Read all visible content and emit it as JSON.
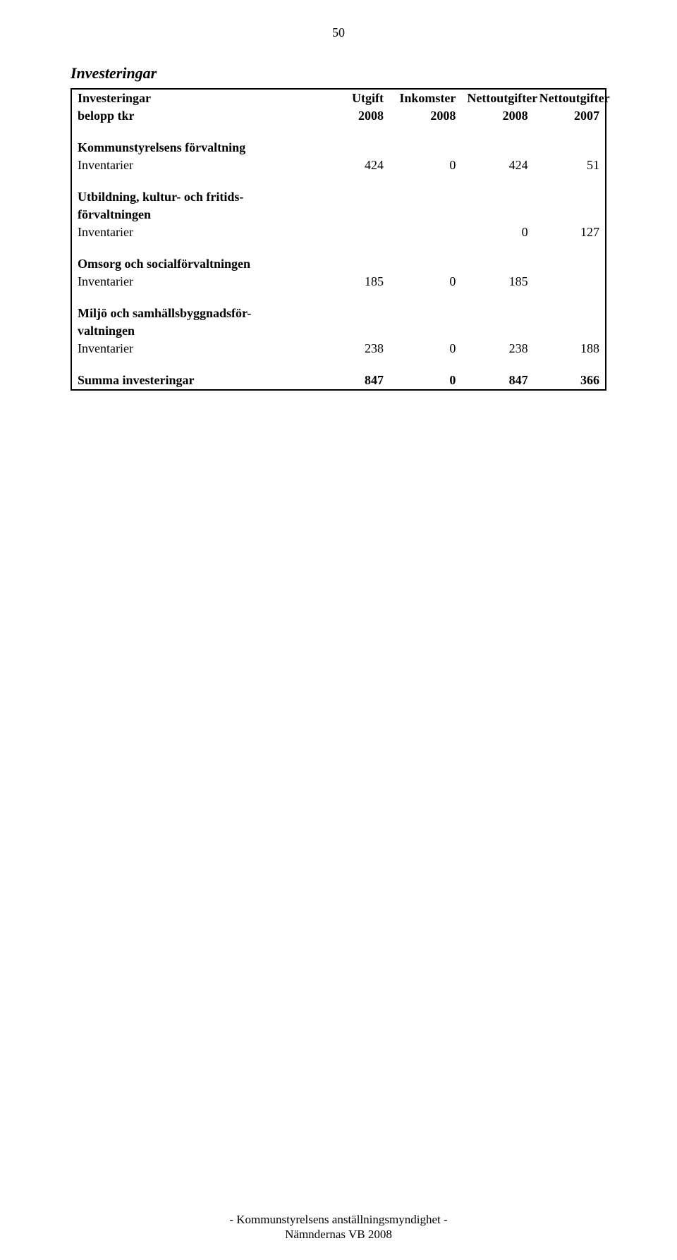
{
  "page_number": "50",
  "section_title": "Investeringar",
  "header": {
    "row1": [
      "Investeringar",
      "Utgift",
      "Inkomster",
      "Nettoutgifter",
      "Nettoutgifter"
    ],
    "row2": [
      "belopp tkr",
      "2008",
      "2008",
      "2008",
      "2007"
    ]
  },
  "groups": [
    {
      "title": "Kommunstyrelsens förvaltning",
      "rows": [
        {
          "label": "Inventarier",
          "c2": "424",
          "c3": "0",
          "c4": "424",
          "c5": "51"
        }
      ]
    },
    {
      "title": "Utbildning, kultur- och fritids-",
      "title2": "förvaltningen",
      "rows": [
        {
          "label": "Inventarier",
          "c2": "",
          "c3": "",
          "c4": "0",
          "c5": "127"
        }
      ]
    },
    {
      "title": "Omsorg och socialförvaltningen",
      "rows": [
        {
          "label": "Inventarier",
          "c2": "185",
          "c3": "0",
          "c4": "185",
          "c5": ""
        }
      ]
    },
    {
      "title": "Miljö och samhällsbyggnadsför-",
      "title2": "valtningen",
      "rows": [
        {
          "label": "Inventarier",
          "c2": "238",
          "c3": "0",
          "c4": "238",
          "c5": "188"
        }
      ]
    }
  ],
  "summary": {
    "label": "Summa investeringar",
    "c2": "847",
    "c3": "0",
    "c4": "847",
    "c5": "366"
  },
  "footer": {
    "line1": "- Kommunstyrelsens anställningsmyndighet -",
    "line2": "Nämndernas VB 2008"
  }
}
